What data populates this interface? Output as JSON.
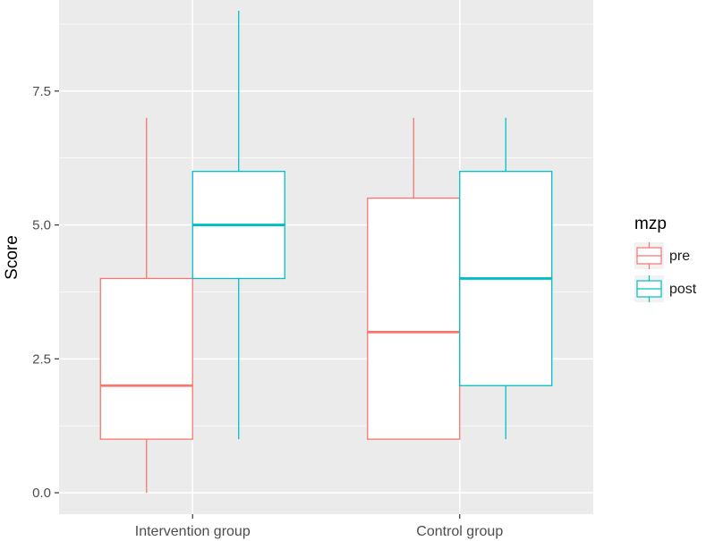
{
  "chart_data": {
    "type": "boxplot",
    "xlabel": "",
    "ylabel": "Score",
    "ylim": [
      -0.4,
      9.2
    ],
    "y_ticks": [
      "0.0",
      "2.5",
      "5.0",
      "7.5"
    ],
    "y_tick_values": [
      0,
      2.5,
      5,
      7.5
    ],
    "categories": [
      "Intervention group",
      "Control group"
    ],
    "legend": {
      "title": "mzp",
      "position": "right"
    },
    "grid": true,
    "series": [
      {
        "name": "pre",
        "color": "#F8766D",
        "boxes": [
          {
            "category": "Intervention group",
            "min": 0,
            "q1": 1,
            "median": 2,
            "q3": 4,
            "max": 7
          },
          {
            "category": "Control group",
            "min": 1,
            "q1": 1,
            "median": 3,
            "q3": 5.5,
            "max": 7
          }
        ]
      },
      {
        "name": "post",
        "color": "#00BFC4",
        "boxes": [
          {
            "category": "Intervention group",
            "min": 1,
            "q1": 4,
            "median": 5,
            "q3": 6,
            "max": 9
          },
          {
            "category": "Control group",
            "min": 1,
            "q1": 2,
            "median": 4,
            "q3": 6,
            "max": 7
          }
        ]
      }
    ]
  }
}
